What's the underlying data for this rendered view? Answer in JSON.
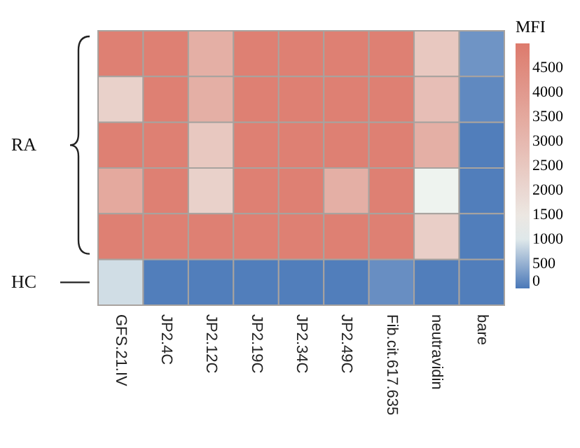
{
  "chart_data": {
    "type": "heatmap",
    "categories": [
      "GFS.21.IV",
      "JP2.4C",
      "JP2.12C",
      "JP2.19C",
      "JP2.34C",
      "JP2.49C",
      "Fib.cit.617.635",
      "neutravidin",
      "bare"
    ],
    "y_categories": [
      null,
      null,
      null,
      null,
      null,
      null
    ],
    "cells": [
      [
        4800,
        4800,
        3300,
        4800,
        4800,
        4800,
        4800,
        2500,
        250
      ],
      [
        2200,
        4800,
        3300,
        4800,
        4800,
        4800,
        4800,
        2800,
        150
      ],
      [
        4800,
        4800,
        2500,
        4800,
        4800,
        4800,
        4800,
        3300,
        50
      ],
      [
        3500,
        4800,
        2200,
        4800,
        4800,
        3300,
        4800,
        1100,
        50
      ],
      [
        4800,
        4800,
        4800,
        4800,
        4800,
        4800,
        4800,
        2300,
        50
      ],
      [
        900,
        50,
        50,
        50,
        50,
        50,
        200,
        50,
        50
      ]
    ],
    "clabel": "MFI",
    "clim": [
      0,
      5000
    ],
    "cticks": [
      0,
      500,
      1000,
      1500,
      2000,
      2500,
      3000,
      3500,
      4000,
      4500
    ],
    "annotations": [
      "RA",
      "HC"
    ]
  }
}
